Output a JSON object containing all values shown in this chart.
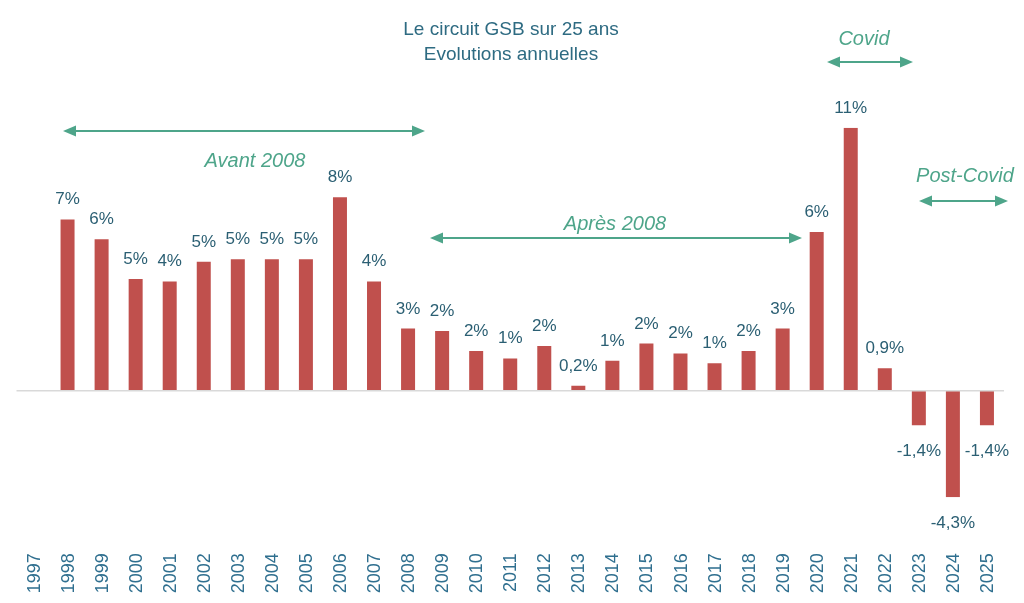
{
  "chart_data": {
    "type": "bar",
    "title": "Le circuit GSB sur 25 ans",
    "subtitle": "Evolutions annuelles",
    "categories": [
      "1997",
      "1998",
      "1999",
      "2000",
      "2001",
      "2002",
      "2003",
      "2004",
      "2005",
      "2006",
      "2007",
      "2008",
      "2009",
      "2010",
      "2011",
      "2012",
      "2013",
      "2014",
      "2015",
      "2016",
      "2017",
      "2018",
      "2019",
      "2020",
      "2021",
      "2022",
      "2023",
      "2024",
      "2025"
    ],
    "values": [
      null,
      6.9,
      6.1,
      4.5,
      4.4,
      5.2,
      5.3,
      5.3,
      5.3,
      7.8,
      4.4,
      2.5,
      2.4,
      1.6,
      1.3,
      1.8,
      0.2,
      1.2,
      1.9,
      1.5,
      1.1,
      1.6,
      2.5,
      6.4,
      10.6,
      0.9,
      -1.4,
      -4.3,
      -1.4
    ],
    "value_labels": [
      null,
      "7%",
      "6%",
      "5%",
      "4%",
      "5%",
      "5%",
      "5%",
      "5%",
      "8%",
      "4%",
      "3%",
      "2%",
      "2%",
      "1%",
      "2%",
      "0,2%",
      "1%",
      "2%",
      "2%",
      "1%",
      "2%",
      "3%",
      "6%",
      "11%",
      "0,9%",
      "-1,4%",
      "-4,3%",
      "-1,4%"
    ],
    "color": "#c0504d",
    "annotations": [
      "Avant 2008",
      "Après 2008",
      "Covid",
      "Post-Covid"
    ]
  }
}
